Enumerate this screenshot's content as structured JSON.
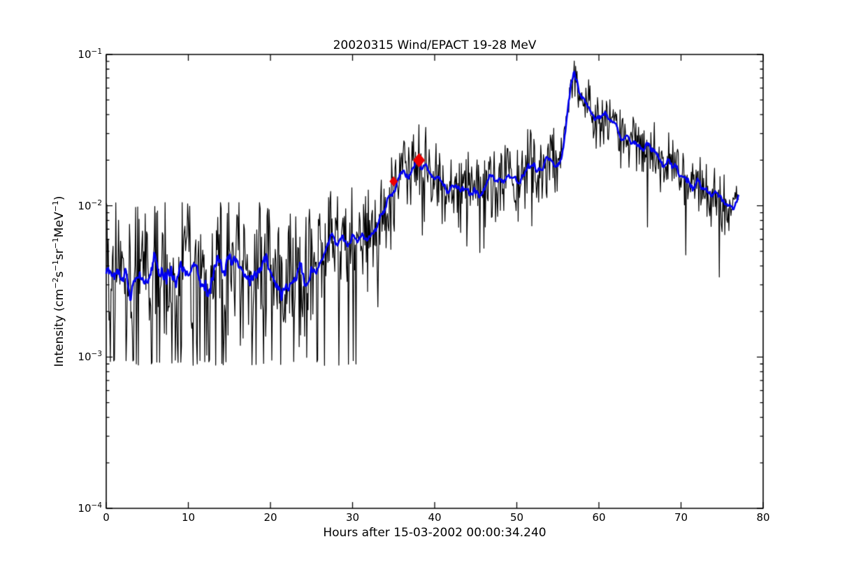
{
  "figure": {
    "background": "#ffffff"
  },
  "chart_data": {
    "type": "line",
    "title": "20020315 Wind/EPACT 19-28 MeV",
    "xlabel": "Hours after 15-03-2002 00:00:34.240",
    "ylabel_segments": [
      {
        "text": "Intensity (cm"
      },
      {
        "sup": "−2"
      },
      {
        "text": "s"
      },
      {
        "sup": "−1"
      },
      {
        "text": "sr"
      },
      {
        "sup": "−1"
      },
      {
        "text": "MeV"
      },
      {
        "sup": "−1"
      },
      {
        "text": ")"
      }
    ],
    "xlim": [
      0,
      80
    ],
    "ylog_range": {
      "top_exp": -1,
      "bottom_exp": -4
    },
    "grid": false,
    "legend": "none",
    "xticks": [
      {
        "value": 0,
        "label": "0"
      },
      {
        "value": 10,
        "label": "10"
      },
      {
        "value": 20,
        "label": "20"
      },
      {
        "value": 30,
        "label": "30"
      },
      {
        "value": 40,
        "label": "40"
      },
      {
        "value": 50,
        "label": "50"
      },
      {
        "value": 60,
        "label": "60"
      },
      {
        "value": 70,
        "label": "70"
      },
      {
        "value": 80,
        "label": "80"
      }
    ],
    "yticks": [
      {
        "value": 0.1,
        "base": "10",
        "exp": "−1"
      },
      {
        "value": 0.01,
        "base": "10",
        "exp": "−2"
      },
      {
        "value": 0.001,
        "base": "10",
        "exp": "−3"
      },
      {
        "value": 0.0001,
        "base": "10",
        "exp": "−4"
      }
    ],
    "y_minor_exponents": [
      -2,
      -3,
      -4
    ],
    "colors": {
      "frame": "#000000",
      "raw_series": "#000000",
      "smoothed_series": "#0000f0",
      "event_markers": "#ee0000",
      "text": "#000000"
    },
    "x_end": 77.0,
    "series": [
      {
        "name": "raw-intensity",
        "style": "noisy-line",
        "color_key": "raw_series"
      },
      {
        "name": "smoothed-intensity",
        "style": "line",
        "color_key": "smoothed_series",
        "anchors": [
          [
            0,
            0.003
          ],
          [
            0.5,
            0.0034
          ],
          [
            1,
            0.0031
          ],
          [
            1.5,
            0.0036
          ],
          [
            2,
            0.0033
          ],
          [
            2.5,
            0.0038
          ],
          [
            3,
            0.003
          ],
          [
            3.5,
            0.0034
          ],
          [
            4,
            0.0039
          ],
          [
            4.5,
            0.0035
          ],
          [
            5,
            0.0032
          ],
          [
            5.5,
            0.0037
          ],
          [
            6,
            0.004
          ],
          [
            6.5,
            0.0034
          ],
          [
            7,
            0.0031
          ],
          [
            7.5,
            0.0036
          ],
          [
            8,
            0.0038
          ],
          [
            8.5,
            0.0033
          ],
          [
            9,
            0.004
          ],
          [
            9.5,
            0.0036
          ],
          [
            10,
            0.0031
          ],
          [
            10.5,
            0.0035
          ],
          [
            11,
            0.0038
          ],
          [
            11.5,
            0.0032
          ],
          [
            12,
            0.0026
          ],
          [
            12.4,
            0.0023
          ],
          [
            12.8,
            0.003
          ],
          [
            13.2,
            0.0035
          ],
          [
            13.6,
            0.0038
          ],
          [
            14,
            0.004
          ],
          [
            14.5,
            0.0036
          ],
          [
            15,
            0.0041
          ],
          [
            15.5,
            0.0045
          ],
          [
            16,
            0.0039
          ],
          [
            16.5,
            0.0034
          ],
          [
            17,
            0.0036
          ],
          [
            17.5,
            0.0032
          ],
          [
            18,
            0.003
          ],
          [
            18.5,
            0.0035
          ],
          [
            19,
            0.0039
          ],
          [
            19.5,
            0.0041
          ],
          [
            20,
            0.0037
          ],
          [
            20.5,
            0.0033
          ],
          [
            21,
            0.0031
          ],
          [
            21.5,
            0.0035
          ],
          [
            22,
            0.003
          ],
          [
            22.5,
            0.0033
          ],
          [
            23,
            0.0036
          ],
          [
            23.5,
            0.0031
          ],
          [
            24,
            0.0028
          ],
          [
            24.5,
            0.0032
          ],
          [
            25,
            0.0035
          ],
          [
            25.5,
            0.0038
          ],
          [
            26,
            0.0042
          ],
          [
            26.5,
            0.005
          ],
          [
            27,
            0.0056
          ],
          [
            27.5,
            0.0068
          ],
          [
            28,
            0.0061
          ],
          [
            28.5,
            0.0056
          ],
          [
            29,
            0.0058
          ],
          [
            29.5,
            0.006
          ],
          [
            30,
            0.0063
          ],
          [
            30.5,
            0.0067
          ],
          [
            31,
            0.0061
          ],
          [
            31.5,
            0.0058
          ],
          [
            32,
            0.0066
          ],
          [
            32.5,
            0.007
          ],
          [
            33,
            0.0076
          ],
          [
            33.5,
            0.0083
          ],
          [
            34,
            0.0095
          ],
          [
            34.5,
            0.0115
          ],
          [
            35,
            0.0138
          ],
          [
            35.5,
            0.0151
          ],
          [
            36,
            0.0158
          ],
          [
            36.5,
            0.0153
          ],
          [
            37,
            0.0168
          ],
          [
            37.5,
            0.0181
          ],
          [
            38,
            0.0198
          ],
          [
            38.5,
            0.0186
          ],
          [
            39,
            0.017
          ],
          [
            39.5,
            0.0158
          ],
          [
            40,
            0.015
          ],
          [
            40.5,
            0.0144
          ],
          [
            41,
            0.0136
          ],
          [
            41.5,
            0.0128
          ],
          [
            42,
            0.013
          ],
          [
            42.5,
            0.0124
          ],
          [
            43,
            0.0121
          ],
          [
            43.5,
            0.0125
          ],
          [
            44,
            0.013
          ],
          [
            44.5,
            0.0126
          ],
          [
            45,
            0.012
          ],
          [
            45.5,
            0.0123
          ],
          [
            46,
            0.0132
          ],
          [
            46.5,
            0.014
          ],
          [
            47,
            0.0145
          ],
          [
            47.5,
            0.0152
          ],
          [
            48,
            0.0147
          ],
          [
            48.5,
            0.0143
          ],
          [
            49,
            0.0155
          ],
          [
            49.5,
            0.015
          ],
          [
            50,
            0.0148
          ],
          [
            50.5,
            0.016
          ],
          [
            51,
            0.0172
          ],
          [
            51.5,
            0.0178
          ],
          [
            52,
            0.0185
          ],
          [
            52.5,
            0.019
          ],
          [
            53,
            0.0185
          ],
          [
            53.5,
            0.0188
          ],
          [
            54,
            0.0198
          ],
          [
            54.5,
            0.0188
          ],
          [
            55,
            0.0192
          ],
          [
            55.4,
            0.0205
          ],
          [
            55.7,
            0.0245
          ],
          [
            56,
            0.0345
          ],
          [
            56.3,
            0.052
          ],
          [
            56.6,
            0.064
          ],
          [
            56.9,
            0.0705
          ],
          [
            57.2,
            0.067
          ],
          [
            57.4,
            0.064
          ],
          [
            57.8,
            0.056
          ],
          [
            58.2,
            0.05
          ],
          [
            58.6,
            0.0455
          ],
          [
            59,
            0.043
          ],
          [
            59.5,
            0.04
          ],
          [
            60,
            0.0415
          ],
          [
            60.4,
            0.0445
          ],
          [
            60.8,
            0.0415
          ],
          [
            61.2,
            0.0385
          ],
          [
            61.6,
            0.0355
          ],
          [
            62,
            0.0335
          ],
          [
            62.4,
            0.0305
          ],
          [
            62.8,
            0.0285
          ],
          [
            63.2,
            0.0275
          ],
          [
            63.7,
            0.026
          ],
          [
            64.5,
            0.0245
          ],
          [
            65.4,
            0.0235
          ],
          [
            66.2,
            0.0225
          ],
          [
            67.1,
            0.022
          ],
          [
            67.6,
            0.02
          ],
          [
            68.2,
            0.0188
          ],
          [
            68.8,
            0.019
          ],
          [
            69.6,
            0.0165
          ],
          [
            70.5,
            0.015
          ],
          [
            71.3,
            0.014
          ],
          [
            72.2,
            0.0132
          ],
          [
            73,
            0.0128
          ],
          [
            73.9,
            0.0121
          ],
          [
            74.7,
            0.0117
          ],
          [
            75.6,
            0.0103
          ],
          [
            76.3,
            0.0091
          ],
          [
            76.7,
            0.01
          ],
          [
            77,
            0.0107
          ]
        ]
      }
    ],
    "markers": [
      {
        "x": 35.0,
        "y": 0.0145,
        "shape": "diamond",
        "size": 12
      },
      {
        "x": 38.1,
        "y": 0.02,
        "shape": "diamond",
        "size": 17
      }
    ],
    "noise": {
      "seed": 20020315,
      "dt": 0.08333,
      "sigma_regions": [
        {
          "until": 25,
          "sigma": 0.26
        },
        {
          "until": 32,
          "sigma": 0.18
        },
        {
          "until": 55.5,
          "sigma": 0.135
        },
        {
          "until": 58,
          "sigma": 0.07
        },
        {
          "until": 80,
          "sigma": 0.1
        }
      ],
      "clip_lo": -2.0,
      "clip_hi": 1.8,
      "dropouts": [
        {
          "until": 31,
          "p": 0.11,
          "floor": 0.00089
        },
        {
          "until": 34,
          "p": 0.05,
          "floor": 0.002
        },
        {
          "until": 55,
          "p": 0.03,
          "rel": 0.4
        },
        {
          "until": 80,
          "p": 0.013,
          "rel": 0.3
        }
      ],
      "background_cap": {
        "until": 25.5,
        "max": 0.0105
      },
      "value_min": 0.00088,
      "value_max": 0.092,
      "wiggle_regions": [
        {
          "until": 25,
          "sigma": 0.045
        },
        {
          "until": 80,
          "sigma": 0.022
        }
      ],
      "wiggle_window": 7
    }
  }
}
